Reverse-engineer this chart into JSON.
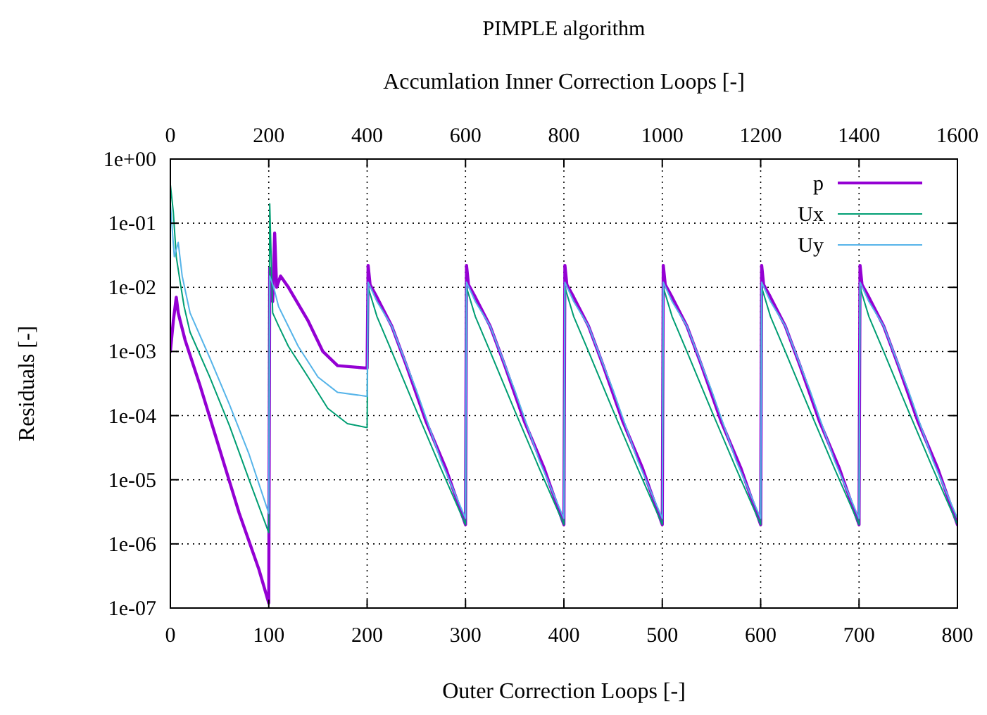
{
  "chart_data": {
    "type": "line",
    "title": "PIMPLE algorithm",
    "xlabel": "Outer Correction Loops [-]",
    "x2label": "Accumlation Inner Correction Loops [-]",
    "ylabel": "Residuals [-]",
    "xlim": [
      0,
      800
    ],
    "xticks": [
      0,
      100,
      200,
      300,
      400,
      500,
      600,
      700,
      800
    ],
    "x2lim": [
      0,
      1600
    ],
    "x2ticks": [
      0,
      200,
      400,
      600,
      800,
      1000,
      1200,
      1400,
      1600
    ],
    "ylim": [
      1e-07,
      1
    ],
    "yticks": [
      {
        "value": 1,
        "label": "1e+00"
      },
      {
        "value": 0.1,
        "label": "1e-01"
      },
      {
        "value": 0.01,
        "label": "1e-02"
      },
      {
        "value": 0.001,
        "label": "1e-03"
      },
      {
        "value": 0.0001,
        "label": "1e-04"
      },
      {
        "value": 1e-05,
        "label": "1e-05"
      },
      {
        "value": 1e-06,
        "label": "1e-06"
      },
      {
        "value": 1e-07,
        "label": "1e-07"
      }
    ],
    "log": "y",
    "grid": true,
    "legend": "top right",
    "line_style": "solid",
    "marker": "none",
    "series": [
      {
        "name": "p",
        "color": "#9400d3",
        "x": [
          0,
          3,
          6,
          8,
          10,
          15,
          30,
          50,
          70,
          90,
          100,
          101,
          104,
          106,
          108,
          112,
          120,
          140,
          155,
          170,
          200,
          201,
          203,
          210,
          225,
          240,
          260,
          280,
          300,
          301,
          303,
          310,
          325,
          340,
          360,
          380,
          400,
          401,
          403,
          410,
          425,
          440,
          460,
          480,
          500,
          501,
          503,
          510,
          525,
          540,
          560,
          580,
          600,
          601,
          603,
          610,
          625,
          640,
          660,
          680,
          700,
          701,
          703,
          710,
          725,
          740,
          760,
          780,
          800
        ],
        "values": [
          0.001,
          0.003,
          0.007,
          0.004,
          0.003,
          0.0015,
          0.0003,
          3e-05,
          3e-06,
          4e-07,
          1.2e-07,
          0.02,
          0.006,
          0.07,
          0.01,
          0.015,
          0.01,
          0.003,
          0.001,
          0.0006,
          0.00055,
          0.022,
          0.011,
          0.007,
          0.0025,
          0.0006,
          8e-05,
          1.5e-05,
          2e-06,
          0.022,
          0.011,
          0.007,
          0.0025,
          0.0006,
          8e-05,
          1.5e-05,
          2e-06,
          0.022,
          0.011,
          0.007,
          0.0025,
          0.0006,
          8e-05,
          1.5e-05,
          2e-06,
          0.022,
          0.011,
          0.007,
          0.0025,
          0.0006,
          8e-05,
          1.5e-05,
          2e-06,
          0.022,
          0.011,
          0.007,
          0.0025,
          0.0006,
          8e-05,
          1.5e-05,
          2e-06,
          0.022,
          0.011,
          0.007,
          0.0025,
          0.0006,
          8e-05,
          1.5e-05,
          2e-06
        ]
      },
      {
        "name": "Ux",
        "color": "#009e73",
        "x": [
          0,
          3,
          6,
          10,
          14,
          20,
          40,
          60,
          80,
          100,
          101,
          104,
          110,
          120,
          140,
          160,
          180,
          200,
          201,
          210,
          225,
          250,
          275,
          300,
          301,
          310,
          325,
          350,
          375,
          400,
          401,
          410,
          425,
          450,
          475,
          500,
          501,
          510,
          525,
          550,
          575,
          600,
          601,
          610,
          625,
          650,
          675,
          700,
          701,
          710,
          725,
          750,
          775,
          800
        ],
        "values": [
          0.4,
          0.15,
          0.03,
          0.012,
          0.005,
          0.002,
          0.0004,
          7e-05,
          1e-05,
          1.5e-06,
          0.2,
          0.004,
          0.0025,
          0.0012,
          0.0004,
          0.00013,
          7.5e-05,
          6.5e-05,
          0.01,
          0.0035,
          0.001,
          0.00012,
          1.5e-05,
          2e-06,
          0.01,
          0.0035,
          0.001,
          0.00012,
          1.5e-05,
          2e-06,
          0.01,
          0.0035,
          0.001,
          0.00012,
          1.5e-05,
          2e-06,
          0.01,
          0.0035,
          0.001,
          0.00012,
          1.5e-05,
          2e-06,
          0.01,
          0.0035,
          0.001,
          0.00012,
          1.5e-05,
          2e-06,
          0.01,
          0.0035,
          0.001,
          0.00012,
          1.5e-05,
          2e-06
        ]
      },
      {
        "name": "Uy",
        "color": "#56b4e9",
        "x": [
          0,
          4,
          8,
          12,
          20,
          40,
          60,
          80,
          100,
          101,
          105,
          110,
          130,
          150,
          170,
          200,
          201,
          210,
          225,
          250,
          275,
          300,
          301,
          310,
          325,
          350,
          375,
          400,
          401,
          410,
          425,
          450,
          475,
          500,
          501,
          510,
          525,
          550,
          575,
          600,
          601,
          610,
          625,
          650,
          675,
          700,
          701,
          710,
          725,
          750,
          775,
          800
        ],
        "values": [
          0.2,
          0.03,
          0.05,
          0.015,
          0.004,
          0.0008,
          0.00015,
          2.5e-05,
          3e-06,
          0.015,
          0.01,
          0.005,
          0.0012,
          0.0004,
          0.00023,
          0.0002,
          0.012,
          0.006,
          0.0025,
          0.00025,
          2e-05,
          2.5e-06,
          0.012,
          0.006,
          0.0025,
          0.00025,
          2e-05,
          2.5e-06,
          0.012,
          0.006,
          0.0025,
          0.00025,
          2e-05,
          2.5e-06,
          0.012,
          0.006,
          0.0025,
          0.00025,
          2e-05,
          2.5e-06,
          0.012,
          0.006,
          0.0025,
          0.00025,
          2e-05,
          2.5e-06,
          0.012,
          0.006,
          0.0025,
          0.00025,
          2e-05,
          2.5e-06
        ]
      }
    ]
  }
}
